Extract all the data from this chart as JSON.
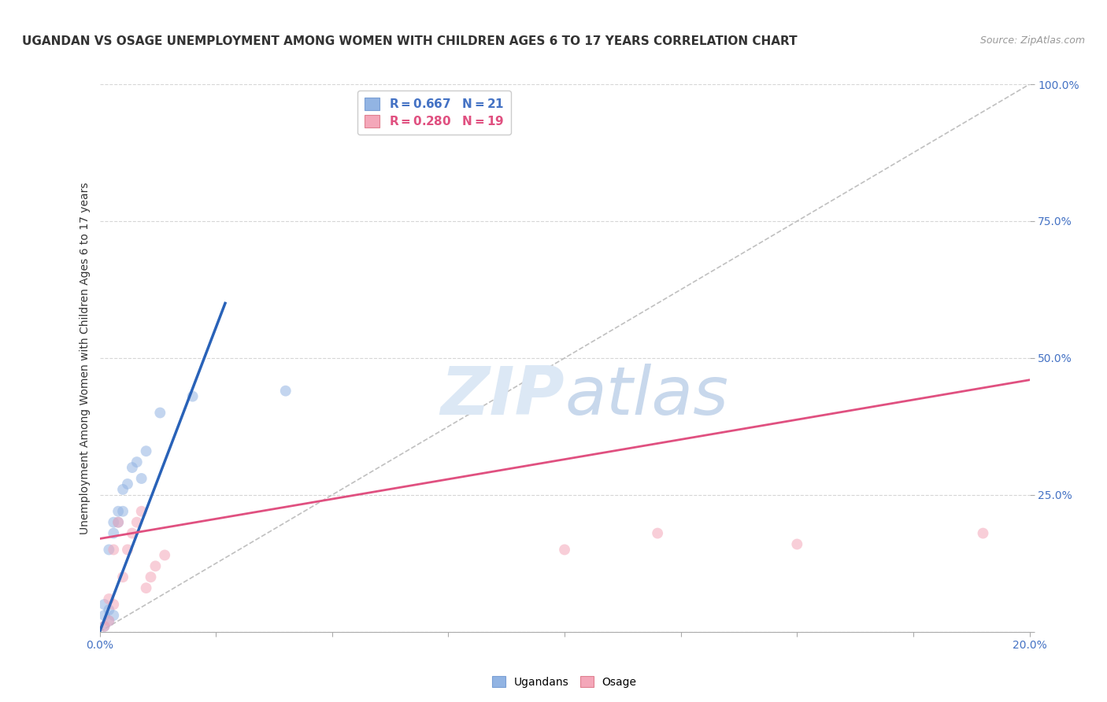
{
  "title": "UGANDAN VS OSAGE UNEMPLOYMENT AMONG WOMEN WITH CHILDREN AGES 6 TO 17 YEARS CORRELATION CHART",
  "source": "Source: ZipAtlas.com",
  "ylabel": "Unemployment Among Women with Children Ages 6 to 17 years",
  "xlim": [
    0.0,
    0.2
  ],
  "ylim": [
    0.0,
    1.0
  ],
  "xticks": [
    0.0,
    0.025,
    0.05,
    0.075,
    0.1,
    0.125,
    0.15,
    0.175,
    0.2
  ],
  "xticklabels": [
    "0.0%",
    "",
    "",
    "",
    "",
    "",
    "",
    "",
    "20.0%"
  ],
  "yticks": [
    0.0,
    0.25,
    0.5,
    0.75,
    1.0
  ],
  "yticklabels": [
    "",
    "25.0%",
    "50.0%",
    "75.0%",
    "100.0%"
  ],
  "ugandan_color": "#92b4e3",
  "osage_color": "#f4a7b9",
  "ugandan_line_color": "#2962b8",
  "osage_line_color": "#e05080",
  "diagonal_color": "#c0c0c0",
  "watermark_color": "#dce8f5",
  "background_color": "#ffffff",
  "ugandan_x": [
    0.001,
    0.001,
    0.001,
    0.002,
    0.002,
    0.002,
    0.003,
    0.003,
    0.003,
    0.004,
    0.004,
    0.005,
    0.005,
    0.006,
    0.007,
    0.008,
    0.009,
    0.01,
    0.013,
    0.02,
    0.04
  ],
  "ugandan_y": [
    0.01,
    0.03,
    0.05,
    0.02,
    0.04,
    0.15,
    0.03,
    0.18,
    0.2,
    0.2,
    0.22,
    0.22,
    0.26,
    0.27,
    0.3,
    0.31,
    0.28,
    0.33,
    0.4,
    0.43,
    0.44
  ],
  "osage_x": [
    0.001,
    0.002,
    0.002,
    0.003,
    0.003,
    0.004,
    0.005,
    0.006,
    0.007,
    0.008,
    0.009,
    0.01,
    0.011,
    0.012,
    0.014,
    0.1,
    0.12,
    0.15,
    0.19
  ],
  "osage_y": [
    0.01,
    0.02,
    0.06,
    0.05,
    0.15,
    0.2,
    0.1,
    0.15,
    0.18,
    0.2,
    0.22,
    0.08,
    0.1,
    0.12,
    0.14,
    0.15,
    0.18,
    0.16,
    0.18
  ],
  "ugandan_trendline": [
    0.0,
    0.0,
    0.027,
    0.6
  ],
  "osage_trendline": [
    0.0,
    0.17,
    0.2,
    0.46
  ],
  "marker_size": 100,
  "marker_alpha": 0.55,
  "title_fontsize": 11,
  "label_fontsize": 10,
  "tick_fontsize": 10,
  "legend_fontsize": 11,
  "source_fontsize": 9
}
